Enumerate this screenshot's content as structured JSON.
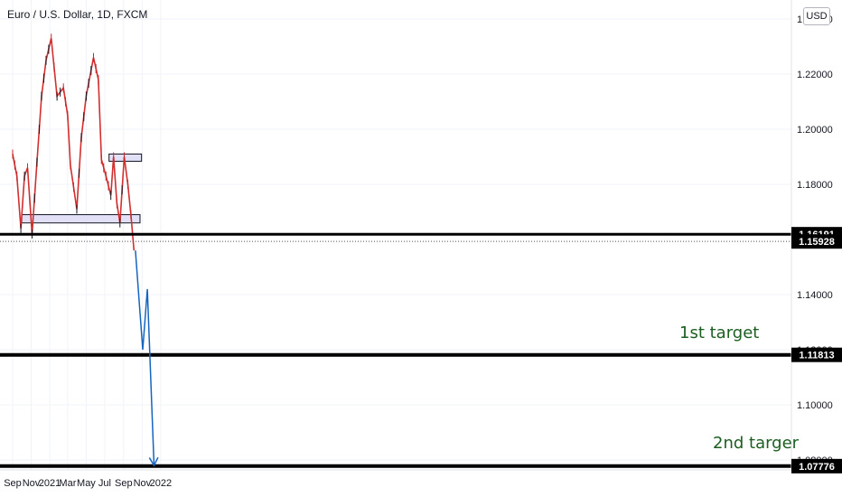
{
  "header": {
    "title": "Euro / U.S. Dollar, 1D, FXCM",
    "currency_label": "USD"
  },
  "chart_data": {
    "type": "candlestick",
    "title": "Euro / U.S. Dollar, 1D, FXCM",
    "y_ticks": [
      "1.22000",
      "1.20000",
      "1.18000",
      "1.14000",
      "1.10000"
    ],
    "y_partial_ticks": [
      "1.24000",
      "1.12000",
      "1.08000"
    ],
    "x_ticks": [
      "Sep",
      "Nov",
      "2021",
      "Mar",
      "May",
      "Jul",
      "Sep",
      "Nov",
      "2022"
    ],
    "ylim": [
      1.074,
      1.238
    ],
    "price_labels": [
      "1.16191",
      "1.15928",
      "1.11813",
      "1.07776"
    ],
    "annotations": [
      "1st target",
      "2nd targer"
    ],
    "price_path": [
      {
        "x": "2020-09-01",
        "y": 1.191
      },
      {
        "x": "2020-09-15",
        "y": 1.183
      },
      {
        "x": "2020-09-28",
        "y": 1.164
      },
      {
        "x": "2020-10-10",
        "y": 1.183
      },
      {
        "x": "2020-10-20",
        "y": 1.186
      },
      {
        "x": "2020-11-04",
        "y": 1.162
      },
      {
        "x": "2020-11-20",
        "y": 1.188
      },
      {
        "x": "2020-12-05",
        "y": 1.212
      },
      {
        "x": "2020-12-20",
        "y": 1.225
      },
      {
        "x": "2021-01-06",
        "y": 1.233
      },
      {
        "x": "2021-01-25",
        "y": 1.212
      },
      {
        "x": "2021-02-15",
        "y": 1.215
      },
      {
        "x": "2021-03-01",
        "y": 1.205
      },
      {
        "x": "2021-03-10",
        "y": 1.187
      },
      {
        "x": "2021-03-31",
        "y": 1.171
      },
      {
        "x": "2021-04-15",
        "y": 1.197
      },
      {
        "x": "2021-05-01",
        "y": 1.212
      },
      {
        "x": "2021-05-25",
        "y": 1.226
      },
      {
        "x": "2021-06-10",
        "y": 1.218
      },
      {
        "x": "2021-06-20",
        "y": 1.189
      },
      {
        "x": "2021-07-05",
        "y": 1.183
      },
      {
        "x": "2021-07-21",
        "y": 1.176
      },
      {
        "x": "2021-07-30",
        "y": 1.19
      },
      {
        "x": "2021-08-10",
        "y": 1.173
      },
      {
        "x": "2021-08-20",
        "y": 1.166
      },
      {
        "x": "2021-09-03",
        "y": 1.19
      },
      {
        "x": "2021-09-15",
        "y": 1.18
      },
      {
        "x": "2021-09-25",
        "y": 1.169
      },
      {
        "x": "2021-10-05",
        "y": 1.156
      }
    ],
    "projection": [
      {
        "x": "2021-10-10",
        "y": 1.156
      },
      {
        "x": "2021-11-03",
        "y": 1.12
      },
      {
        "x": "2021-11-18",
        "y": 1.142
      },
      {
        "x": "2021-12-10",
        "y": 1.078
      }
    ],
    "zones": [
      {
        "x_start": "2020-10-01",
        "x_end": "2021-10-25",
        "y_low": 1.166,
        "y_high": 1.169
      },
      {
        "x_start": "2021-07-15",
        "x_end": "2021-10-30",
        "y_low": 1.189,
        "y_high": 1.191
      }
    ],
    "levels": [
      1.1619,
      1.1593,
      1.1181,
      1.0778
    ]
  }
}
